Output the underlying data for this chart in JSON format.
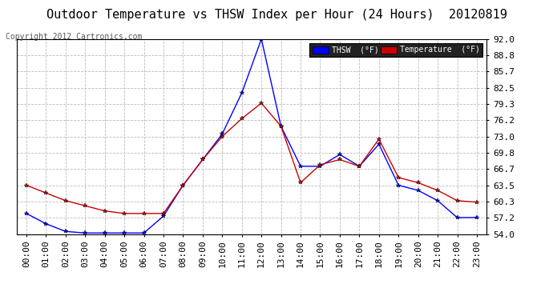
{
  "title": "Outdoor Temperature vs THSW Index per Hour (24 Hours)  20120819",
  "copyright": "Copyright 2012 Cartronics.com",
  "hours": [
    "00:00",
    "01:00",
    "02:00",
    "03:00",
    "04:00",
    "05:00",
    "06:00",
    "07:00",
    "08:00",
    "09:00",
    "10:00",
    "11:00",
    "12:00",
    "13:00",
    "14:00",
    "15:00",
    "16:00",
    "17:00",
    "18:00",
    "19:00",
    "20:00",
    "21:00",
    "22:00",
    "23:00"
  ],
  "thsw": [
    58.0,
    56.0,
    54.5,
    54.2,
    54.2,
    54.2,
    54.2,
    57.5,
    63.5,
    68.5,
    73.5,
    81.5,
    92.0,
    75.0,
    67.2,
    67.2,
    69.5,
    67.2,
    71.5,
    63.5,
    62.5,
    60.5,
    57.2,
    57.2
  ],
  "temp": [
    63.5,
    62.0,
    60.5,
    59.5,
    58.5,
    58.0,
    58.0,
    58.0,
    63.5,
    68.5,
    73.0,
    76.5,
    79.5,
    75.0,
    64.0,
    67.5,
    68.5,
    67.2,
    72.5,
    65.0,
    64.0,
    62.5,
    60.5,
    60.2
  ],
  "thsw_color": "#0000ff",
  "temp_color": "#cc0000",
  "background_color": "#ffffff",
  "plot_bg_color": "#ffffff",
  "grid_color": "#bbbbbb",
  "ylim": [
    54.0,
    92.0
  ],
  "yticks": [
    54.0,
    57.2,
    60.3,
    63.5,
    66.7,
    69.8,
    73.0,
    76.2,
    79.3,
    82.5,
    85.7,
    88.8,
    92.0
  ],
  "title_fontsize": 11,
  "tick_fontsize": 8,
  "copyright_fontsize": 7,
  "legend_thsw_label": "THSW  (°F)",
  "legend_temp_label": "Temperature  (°F)"
}
